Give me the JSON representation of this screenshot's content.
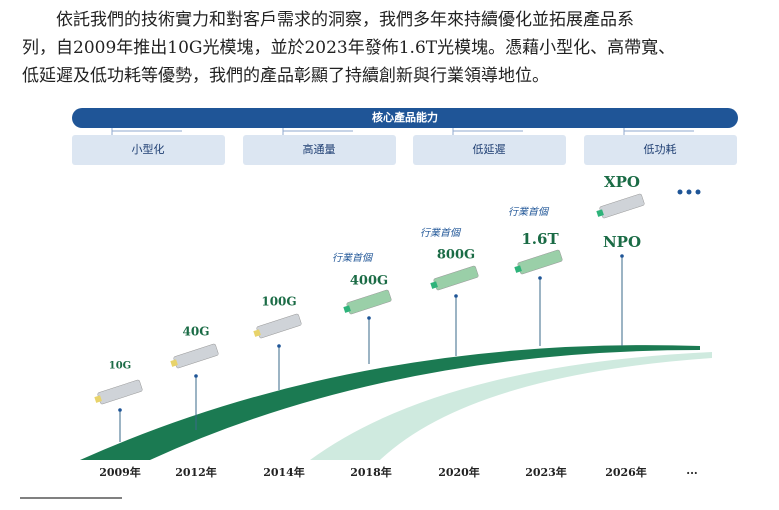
{
  "paragraph": [
    "依託我們的技術實力和對客戶需求的洞察，我們多年來持續優化並拓展產品系",
    "列，自2009年推出10G光模塊，並於2023年發佈1.6T光模塊。憑藉小型化、高帶寬、",
    "低延遲及低功耗等優勢，我們的產品彰顯了持續創新與行業領導地位。"
  ],
  "diagram": {
    "title": "核心產品能力",
    "capabilities": [
      "小型化",
      "高通量",
      "低延遲",
      "低功耗"
    ],
    "milestones": [
      {
        "year": "2009年",
        "product": "10G"
      },
      {
        "year": "2012年",
        "product": "40G"
      },
      {
        "year": "2014年",
        "product": "100G"
      },
      {
        "year": "2018年",
        "product": "400G",
        "note": "行業首個"
      },
      {
        "year": "2020年",
        "product": "800G",
        "note": "行業首個"
      },
      {
        "year": "2023年",
        "product": "1.6T",
        "note": "行業首個"
      },
      {
        "year": "2026年",
        "product": "NPO",
        "product2": "XPO"
      }
    ],
    "more": "..."
  }
}
